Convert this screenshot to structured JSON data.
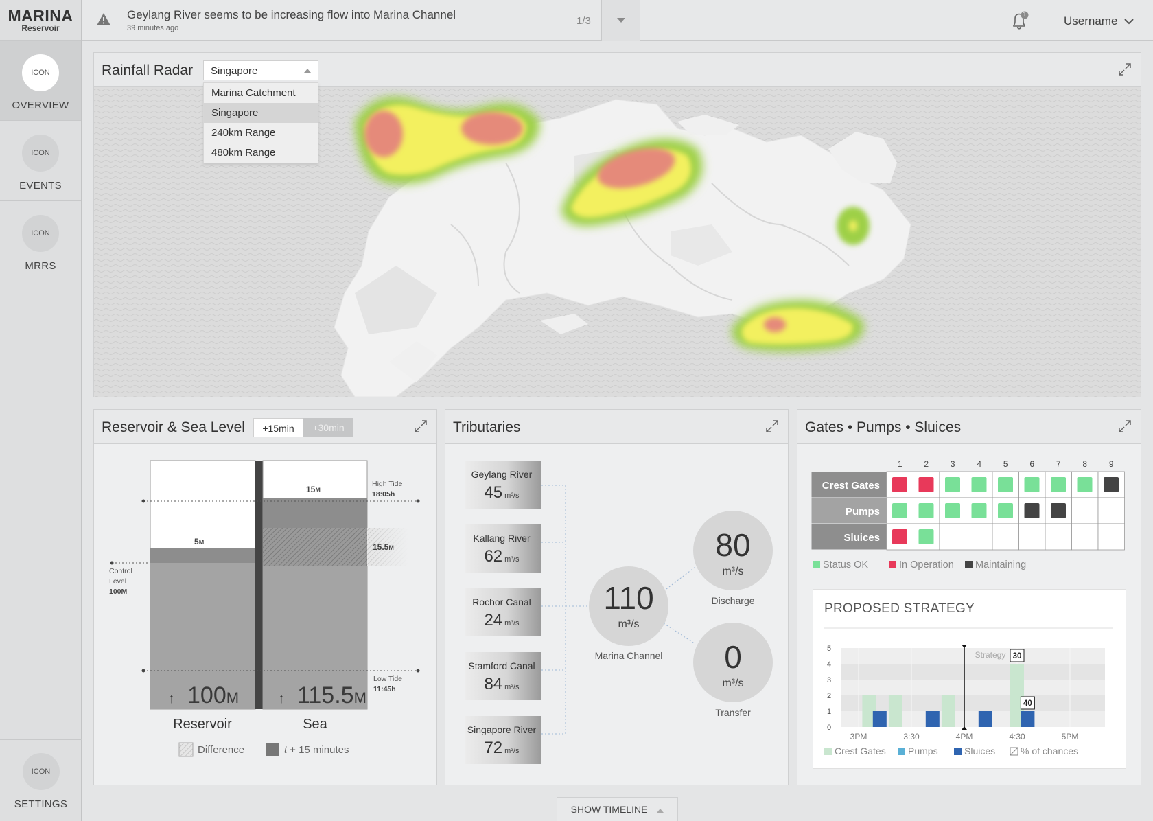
{
  "brand": {
    "title": "MARINA",
    "subtitle": "Reservoir"
  },
  "nav": [
    {
      "icon": "ICON",
      "label": "OVERVIEW",
      "active": true
    },
    {
      "icon": "ICON",
      "label": "EVENTS",
      "active": false
    },
    {
      "icon": "ICON",
      "label": "MRRS",
      "active": false
    }
  ],
  "settings": {
    "icon": "ICON",
    "label": "SETTINGS"
  },
  "alert": {
    "message": "Geylang River seems to be increasing flow into Marina Channel",
    "time": "39 minutes ago",
    "counter": "1/3"
  },
  "notifications": {
    "count": "1"
  },
  "user": {
    "name": "Username"
  },
  "radar": {
    "title": "Rainfall Radar",
    "selected": "Singapore",
    "options": [
      "Marina Catchment",
      "Singapore",
      "240km Range",
      "480km Range"
    ]
  },
  "reservoir": {
    "title": "Reservoir & Sea Level",
    "toggle": [
      "+15min",
      "+30min"
    ],
    "reservoir_level_num": "5",
    "sea_level_num": "15",
    "difference_num": "15.5",
    "unit_small": "M",
    "high_tide_label": "High Tide",
    "high_tide_time": "18:05h",
    "low_tide_label": "Low Tide",
    "low_tide_time": "11:45h",
    "control_label_1": "Control",
    "control_label_2": "Level",
    "control_value": "100M",
    "reservoir_big": "100",
    "sea_big": "115.5",
    "unit_big": "M",
    "col_reservoir": "Reservoir",
    "col_sea": "Sea",
    "legend_difference": "Difference",
    "legend_t_italic": "t",
    "legend_t_rest": "+ 15 minutes"
  },
  "tributaries": {
    "title": "Tributaries",
    "unit": "m³/s",
    "rivers": [
      {
        "name": "Geylang River",
        "value": "45"
      },
      {
        "name": "Kallang River",
        "value": "62"
      },
      {
        "name": "Rochor Canal",
        "value": "24"
      },
      {
        "name": "Stamford Canal",
        "value": "84"
      },
      {
        "name": "Singapore River",
        "value": "72"
      }
    ],
    "channel": {
      "value": "110",
      "label": "Marina Channel"
    },
    "discharge": {
      "value": "80",
      "label": "Discharge"
    },
    "transfer": {
      "value": "0",
      "label": "Transfer"
    }
  },
  "gates": {
    "title": "Gates • Pumps • Sluices",
    "columns": [
      "1",
      "2",
      "3",
      "4",
      "5",
      "6",
      "7",
      "8",
      "9"
    ],
    "colors": {
      "ok": "#79e098",
      "operation": "#e8395a",
      "maintaining": "#444444"
    },
    "rows": [
      {
        "label": "Crest Gates",
        "cells": [
          "operation",
          "operation",
          "ok",
          "ok",
          "ok",
          "ok",
          "ok",
          "ok",
          "maintaining"
        ]
      },
      {
        "label": "Pumps",
        "cells": [
          "ok",
          "ok",
          "ok",
          "ok",
          "ok",
          "maintaining",
          "maintaining",
          "",
          ""
        ]
      },
      {
        "label": "Sluices",
        "cells": [
          "operation",
          "ok",
          "",
          "",
          "",
          "",
          "",
          "",
          ""
        ]
      }
    ],
    "legend": {
      "ok": "Status OK",
      "operation": "In Operation",
      "maintaining": "Maintaining"
    },
    "strategy_title": "PROPOSED STRATEGY",
    "strategy_label": "Strategy",
    "chances_legend": "% of chances"
  },
  "chart_data": {
    "type": "bar",
    "title": "PROPOSED STRATEGY",
    "categories": [
      "3PM",
      "3:30",
      "4PM",
      "4:30",
      "5PM"
    ],
    "ylim": [
      0,
      5
    ],
    "yticks": [
      "0",
      "1",
      "2",
      "3",
      "4",
      "5"
    ],
    "series": [
      {
        "name": "Crest Gates",
        "color": "#c9e6cf",
        "points": [
          [
            0.2,
            2
          ],
          [
            0.7,
            2
          ],
          [
            1.7,
            2
          ],
          [
            3.0,
            4
          ]
        ]
      },
      {
        "name": "Pumps",
        "color": "#5ab0d6",
        "points": []
      },
      {
        "name": "Sluices",
        "color": "#2f64b0",
        "points": [
          [
            0.4,
            1
          ],
          [
            1.4,
            1
          ],
          [
            2.4,
            1
          ],
          [
            3.2,
            1
          ]
        ]
      }
    ],
    "strategy_marker_x": 2,
    "annotations": [
      {
        "x": 3.0,
        "y": 4,
        "text": "30"
      },
      {
        "x": 3.2,
        "y": 1,
        "text": "40"
      }
    ],
    "legend": "bottom",
    "grid": true
  },
  "footer": {
    "show_timeline": "SHOW TIMELINE"
  }
}
